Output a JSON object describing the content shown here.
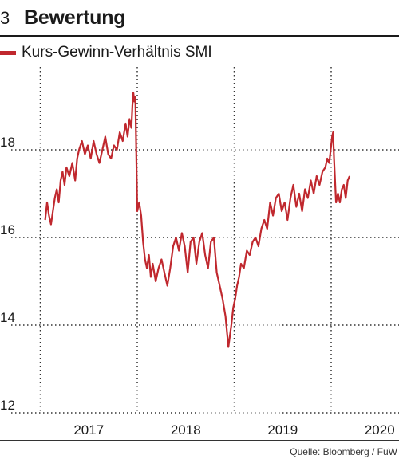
{
  "header": {
    "fig_number": "3",
    "title": "Bewertung"
  },
  "source": "Quelle: Bloomberg / FuW",
  "colors": {
    "series": "#c0282e",
    "grid": "#333333",
    "text": "#1a1a1a"
  },
  "chart_data": {
    "type": "line",
    "title": "Bewertung",
    "xlabel": "",
    "ylabel": "",
    "ylim": [
      12,
      20
    ],
    "xlim": [
      2016.55,
      2020.32
    ],
    "yticks": [
      12,
      14,
      16,
      18
    ],
    "ytick_labels": [
      "12",
      "14",
      "16",
      "18"
    ],
    "xticks": [
      2017,
      2018,
      2019,
      2020
    ],
    "xtick_labels": [
      "2017",
      "2018",
      "2019",
      "2020"
    ],
    "x_gridlines": [
      2016.5,
      2017.5,
      2018.5,
      2019.5
    ],
    "grid": true,
    "legend": "top-left",
    "series": [
      {
        "name": "Kurs-Gewinn-Verhältnis SMI",
        "x": [
          2016.55,
          2016.57,
          2016.59,
          2016.61,
          2016.63,
          2016.65,
          2016.67,
          2016.69,
          2016.71,
          2016.73,
          2016.75,
          2016.77,
          2016.8,
          2016.83,
          2016.86,
          2016.88,
          2016.9,
          2016.93,
          2016.96,
          2016.99,
          2017.02,
          2017.05,
          2017.08,
          2017.11,
          2017.14,
          2017.17,
          2017.2,
          2017.23,
          2017.26,
          2017.29,
          2017.32,
          2017.35,
          2017.38,
          2017.4,
          2017.42,
          2017.44,
          2017.45,
          2017.46,
          2017.47,
          2017.48,
          2017.5,
          2017.52,
          2017.54,
          2017.56,
          2017.58,
          2017.6,
          2017.62,
          2017.64,
          2017.66,
          2017.69,
          2017.72,
          2017.75,
          2017.78,
          2017.81,
          2017.84,
          2017.87,
          2017.9,
          2017.93,
          2017.96,
          2017.99,
          2018.02,
          2018.05,
          2018.08,
          2018.11,
          2018.14,
          2018.17,
          2018.2,
          2018.23,
          2018.26,
          2018.29,
          2018.32,
          2018.35,
          2018.38,
          2018.41,
          2018.44,
          2018.47,
          2018.49,
          2018.51,
          2018.53,
          2018.55,
          2018.57,
          2018.6,
          2018.63,
          2018.66,
          2018.69,
          2018.72,
          2018.75,
          2018.78,
          2018.81,
          2018.84,
          2018.87,
          2018.9,
          2018.93,
          2018.96,
          2018.99,
          2019.02,
          2019.05,
          2019.08,
          2019.11,
          2019.14,
          2019.17,
          2019.2,
          2019.23,
          2019.26,
          2019.29,
          2019.32,
          2019.35,
          2019.38,
          2019.41,
          2019.44,
          2019.46,
          2019.48,
          2019.5,
          2019.51,
          2019.52,
          2019.53,
          2019.55,
          2019.57,
          2019.59,
          2019.61,
          2019.63,
          2019.65,
          2019.67,
          2019.69
        ],
        "values": [
          16.4,
          16.8,
          16.5,
          16.3,
          16.6,
          16.9,
          17.1,
          16.8,
          17.3,
          17.5,
          17.2,
          17.6,
          17.4,
          17.7,
          17.3,
          17.8,
          18.0,
          18.2,
          17.9,
          18.1,
          17.8,
          18.2,
          17.9,
          17.7,
          18.0,
          18.3,
          17.9,
          17.8,
          18.1,
          18.0,
          18.4,
          18.2,
          18.6,
          18.3,
          18.7,
          18.5,
          19.0,
          19.3,
          19.1,
          19.2,
          16.6,
          16.8,
          16.5,
          15.9,
          15.5,
          15.3,
          15.6,
          15.1,
          15.4,
          15.0,
          15.3,
          15.5,
          15.2,
          14.9,
          15.3,
          15.8,
          16.0,
          15.7,
          16.1,
          15.8,
          15.2,
          15.9,
          16.0,
          15.4,
          15.9,
          16.1,
          15.6,
          15.3,
          15.9,
          16.0,
          15.2,
          14.9,
          14.6,
          14.2,
          13.5,
          14.0,
          14.4,
          14.6,
          14.9,
          15.1,
          15.4,
          15.3,
          15.7,
          15.6,
          15.9,
          16.0,
          15.8,
          16.2,
          16.4,
          16.2,
          16.8,
          16.5,
          16.9,
          17.0,
          16.6,
          16.8,
          16.4,
          16.9,
          17.2,
          16.7,
          17.0,
          16.6,
          17.1,
          16.9,
          17.3,
          17.0,
          17.4,
          17.2,
          17.5,
          17.6,
          17.8,
          17.7,
          18.1,
          18.3,
          18.4,
          17.8,
          16.8,
          17.0,
          16.8,
          17.1,
          17.2,
          16.9,
          17.3,
          17.4
        ]
      }
    ]
  }
}
